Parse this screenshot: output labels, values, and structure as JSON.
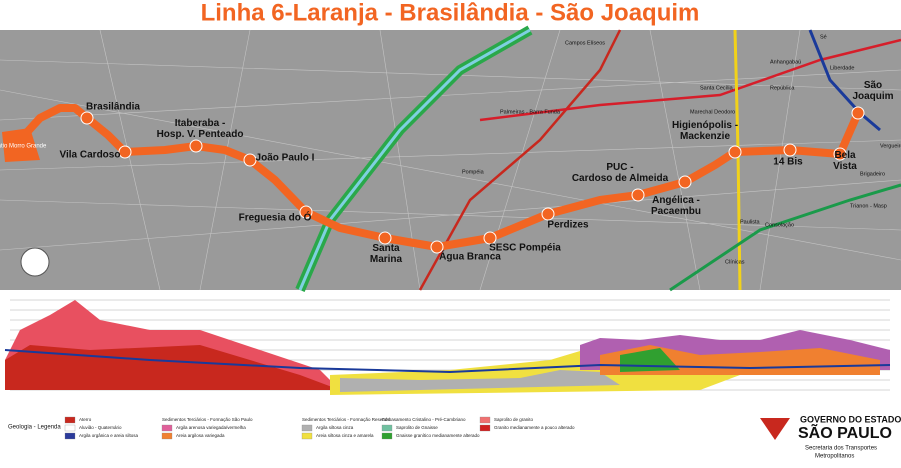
{
  "title": "Linha 6-Laranja - Brasilândia - São Joaquim",
  "stations": [
    "Pátio Morro Grande",
    "Brasilândia",
    "Vila Cardoso",
    "Itaberaba - Hosp. V. Penteado",
    "João Paulo I",
    "Freguesia do Ó",
    "Santa Marina",
    "Água Branca",
    "SESC Pompéia",
    "Perdizes",
    "PUC - Cardoso de Almeida",
    "Angélica - Pacaembu",
    "Higienópolis - Mackenzie",
    "14 Bis",
    "Bela Vista",
    "São Joaquim"
  ],
  "map_labels": [
    "Campos Elíseos",
    "Palmeiras - Barra Funda",
    "Santa Cecília",
    "Marechal Deodoro",
    "República",
    "Anhangabaú",
    "Liberdade",
    "Vergueiro",
    "Brigadeiro",
    "Trianon - Masp",
    "Consolação",
    "Paulista",
    "Clínicas",
    "Pompéia",
    "Sé"
  ],
  "legend": {
    "title": "Geologia - Legenda",
    "headings": [
      "Sedimentos Terciários - Formação São Paulo",
      "Sedimentos Terciários - Formação Resende",
      "Embasamento Cristalino - Pré-Cambriano"
    ],
    "items": [
      {
        "label": "Aterro",
        "color": "#c8281e"
      },
      {
        "label": "Aluvião - Quaternário",
        "color": "#ffffff"
      },
      {
        "label": "Argila orgânica e areia siltosa",
        "color": "#2a3a9a"
      },
      {
        "label": "Argila arenosa variegada/vermelha",
        "color": "#e0609a"
      },
      {
        "label": "Areia argilosa variegada",
        "color": "#f08030"
      },
      {
        "label": "Argila siltosa cinza",
        "color": "#b0b0b0"
      },
      {
        "label": "Areia siltosa cinza e amarela",
        "color": "#f0e040"
      },
      {
        "label": "Saprolito de Gnaisse",
        "color": "#70c0a0"
      },
      {
        "label": "Gnaisse granítico medianamente alterado",
        "color": "#30a030"
      },
      {
        "label": "Saprolito de granito",
        "color": "#f07070"
      },
      {
        "label": "Granito medianamente a pouco alterado",
        "color": "#d02020"
      }
    ]
  },
  "logo": {
    "line1": "GOVERNO DO ESTADO",
    "line2": "SÃO PAULO",
    "line3": "Secretaria dos Transportes",
    "line4": "Metropolitanos"
  }
}
